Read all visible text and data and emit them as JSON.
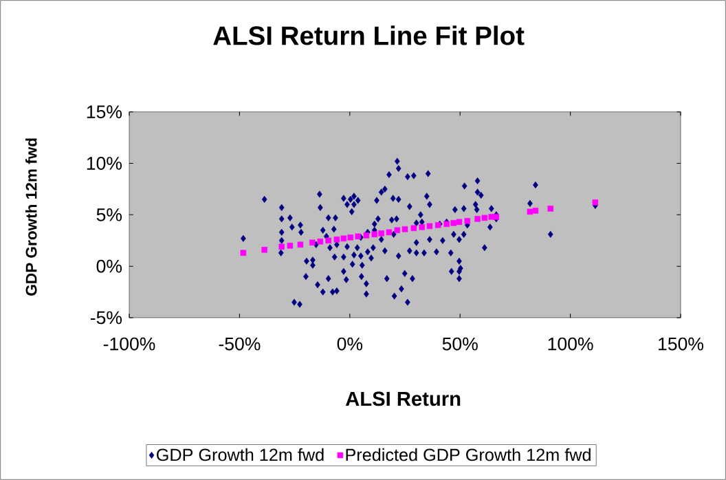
{
  "chart_data": {
    "type": "scatter",
    "title": "ALSI Return Line Fit  Plot",
    "xlabel": "ALSI Return",
    "ylabel": "GDP Growth 12m fwd",
    "xlim": [
      -100,
      150
    ],
    "ylim": [
      -5,
      15
    ],
    "xticks": [
      {
        "value": -100,
        "label": "-100%"
      },
      {
        "value": -50,
        "label": "-50%"
      },
      {
        "value": 0,
        "label": "0%"
      },
      {
        "value": 50,
        "label": "50%"
      },
      {
        "value": 100,
        "label": "100%"
      },
      {
        "value": 150,
        "label": "150%"
      }
    ],
    "yticks": [
      {
        "value": -5,
        "label": "-5%"
      },
      {
        "value": 0,
        "label": "0%"
      },
      {
        "value": 5,
        "label": "5%"
      },
      {
        "value": 10,
        "label": "10%"
      },
      {
        "value": 15,
        "label": "15%"
      }
    ],
    "grid": false,
    "legend": "bottom",
    "series": [
      {
        "name": "GDP Growth 12m fwd",
        "color": "#000080",
        "marker": "diamond",
        "x": [
          -48.3,
          -38.7,
          -30.9,
          -30.9,
          -30.9,
          -30.9,
          -31.2,
          -27.1,
          -26.2,
          -22.4,
          -22.1,
          -25.2,
          -22.7,
          -19.9,
          -19.6,
          -16.8,
          -13.7,
          -13.4,
          -12.2,
          -14.6,
          -12.2,
          -9.7,
          -9.7,
          -6.5,
          -7.2,
          -7.8,
          -5.9,
          -2.8,
          -1.2,
          0.3,
          1.9,
          3.7,
          0.9,
          1.9,
          -1.2,
          -2.8,
          1.2,
          -1.6,
          5.3,
          7.5,
          7.5,
          8.1,
          10.6,
          5.0,
          9.7,
          12.2,
          14.3,
          21.5,
          22.1,
          17.8,
          26.2,
          29.0,
          35.5,
          15.9,
          19.6,
          22.1,
          27.1,
          34.9,
          36.2,
          11.2,
          12.8,
          19.0,
          21.2,
          32.1,
          32.7,
          30.2,
          36.2,
          30.2,
          27.1,
          30.2,
          24.9,
          28.4,
          16.8,
          20.2,
          26.2,
          23.4,
          33.7,
          39.3,
          46.1,
          49.6,
          49.6,
          49.6,
          50.2,
          47.1,
          49.6,
          51.7,
          53.3,
          47.7,
          51.7,
          52.0,
          57.9,
          57.9,
          57.0,
          59.5,
          57.6,
          61.1,
          63.6,
          64.2,
          66.4,
          66.4,
          81.7,
          84.2,
          91.0,
          111.3,
          45.8,
          42.1,
          40.8,
          43.9,
          11.2,
          8.1,
          5.0,
          3.4,
          1.9,
          -2.8,
          5.6,
          -5.9,
          -10.6,
          -15.3,
          -9.0,
          -6.9,
          -16.8,
          15.9,
          22.1,
          19.9,
          14.3
        ],
        "values": [
          2.7,
          6.5,
          5.7,
          4.6,
          3.3,
          2.5,
          1.3,
          4.7,
          3.8,
          4.0,
          3.3,
          -3.5,
          -3.7,
          -1.0,
          0.5,
          0.6,
          7.0,
          5.7,
          3.5,
          -1.8,
          -2.5,
          -1.2,
          4.7,
          4.7,
          3.6,
          -2.5,
          -2.4,
          6.6,
          6.0,
          6.5,
          6.8,
          6.4,
          5.3,
          6.0,
          1.9,
          0.9,
          0.2,
          -1.3,
          -1.0,
          -1.7,
          -2.7,
          1.4,
          1.8,
          1.0,
          0.8,
          6.4,
          7.2,
          10.2,
          9.5,
          8.9,
          8.7,
          8.8,
          9.0,
          7.5,
          6.6,
          6.5,
          5.8,
          6.8,
          6.0,
          4.1,
          4.6,
          4.5,
          4.6,
          5.0,
          4.3,
          4.2,
          2.6,
          2.3,
          1.5,
          1.3,
          -0.7,
          -1.2,
          -1.2,
          -2.9,
          -3.5,
          -2.2,
          1.3,
          1.4,
          -0.5,
          0.5,
          -0.5,
          -1.2,
          -0.2,
          3.1,
          2.6,
          3.1,
          4.0,
          5.5,
          5.6,
          7.8,
          8.3,
          7.2,
          6.0,
          6.9,
          5.5,
          1.8,
          3.8,
          5.6,
          5.0,
          4.6,
          6.1,
          7.9,
          3.1,
          5.9,
          1.3,
          2.5,
          4.1,
          4.3,
          3.5,
          3.3,
          2.8,
          1.8,
          1.1,
          -0.5,
          0.1,
          2.1,
          2.9,
          2.1,
          1.8,
          0.9,
          0.1,
          1.5,
          1.0,
          3.1,
          2.6
        ]
      },
      {
        "name": "Predicted GDP Growth 12m fwd",
        "color": "#ff00ff",
        "marker": "square",
        "x": [
          -48.3,
          -38.7,
          -30.9,
          -27.1,
          -22.4,
          -17.0,
          -13.4,
          -9.7,
          -5.9,
          -2.8,
          0.3,
          3.7,
          7.5,
          11.2,
          14.3,
          17.8,
          21.5,
          25.0,
          29.0,
          32.7,
          36.2,
          40.0,
          43.9,
          47.0,
          49.6,
          53.3,
          57.9,
          61.1,
          64.2,
          66.4,
          81.7,
          84.2,
          91.0,
          111.3
        ],
        "values": [
          1.3,
          1.6,
          1.9,
          2.0,
          2.1,
          2.3,
          2.4,
          2.5,
          2.6,
          2.7,
          2.8,
          2.9,
          3.0,
          3.1,
          3.2,
          3.3,
          3.5,
          3.6,
          3.7,
          3.8,
          3.9,
          4.0,
          4.1,
          4.2,
          4.3,
          4.4,
          4.6,
          4.7,
          4.8,
          4.8,
          5.3,
          5.4,
          5.6,
          6.2
        ]
      }
    ]
  }
}
